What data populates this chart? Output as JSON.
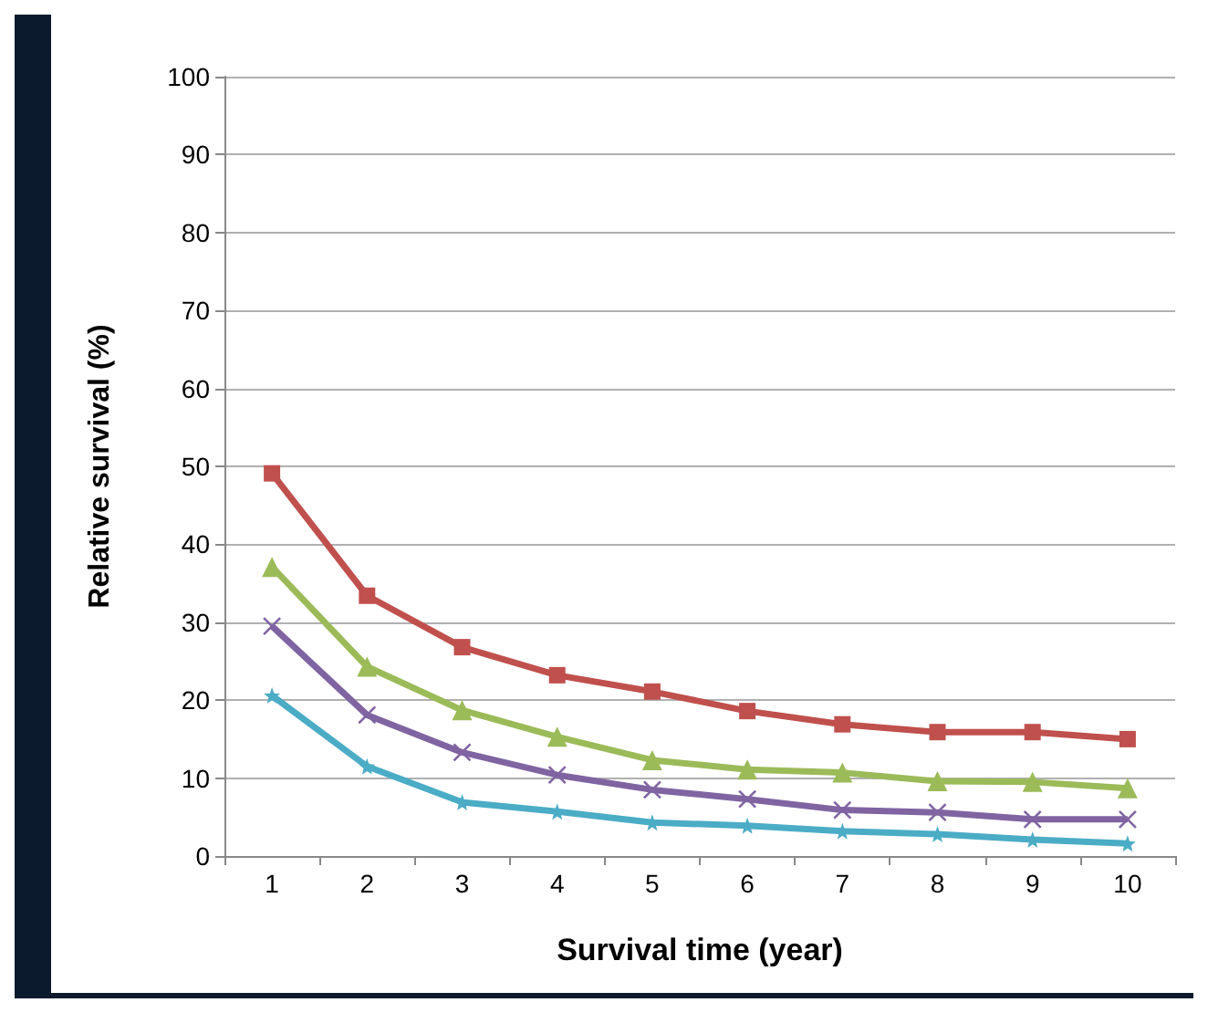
{
  "chart_data": {
    "type": "line",
    "xlabel": "Survival time (year)",
    "ylabel": "Relative survival (%)",
    "categories": [
      "1",
      "2",
      "3",
      "4",
      "5",
      "6",
      "7",
      "8",
      "9",
      "10"
    ],
    "series": [
      {
        "color": "#c0504d",
        "marker": "square",
        "values": [
          49.1,
          33.4,
          26.8,
          23.2,
          21.1,
          18.6,
          16.9,
          15.9,
          15.9,
          15.0
        ]
      },
      {
        "color": "#9bbb59",
        "marker": "triangle",
        "values": [
          37.1,
          24.3,
          18.7,
          15.3,
          12.3,
          11.1,
          10.7,
          9.6,
          9.5,
          8.7
        ]
      },
      {
        "color": "#8064a2",
        "marker": "cross",
        "values": [
          29.5,
          18.1,
          13.3,
          10.4,
          8.5,
          7.3,
          5.9,
          5.6,
          4.7,
          4.7
        ]
      },
      {
        "color": "#4bacc6",
        "marker": "star",
        "values": [
          20.6,
          11.5,
          6.9,
          5.7,
          4.3,
          3.9,
          3.2,
          2.8,
          2.1,
          1.6
        ]
      }
    ],
    "ylim": [
      0,
      100
    ],
    "yticks": [
      0,
      10,
      20,
      30,
      40,
      50,
      60,
      70,
      80,
      90,
      100
    ],
    "grid": "y"
  }
}
